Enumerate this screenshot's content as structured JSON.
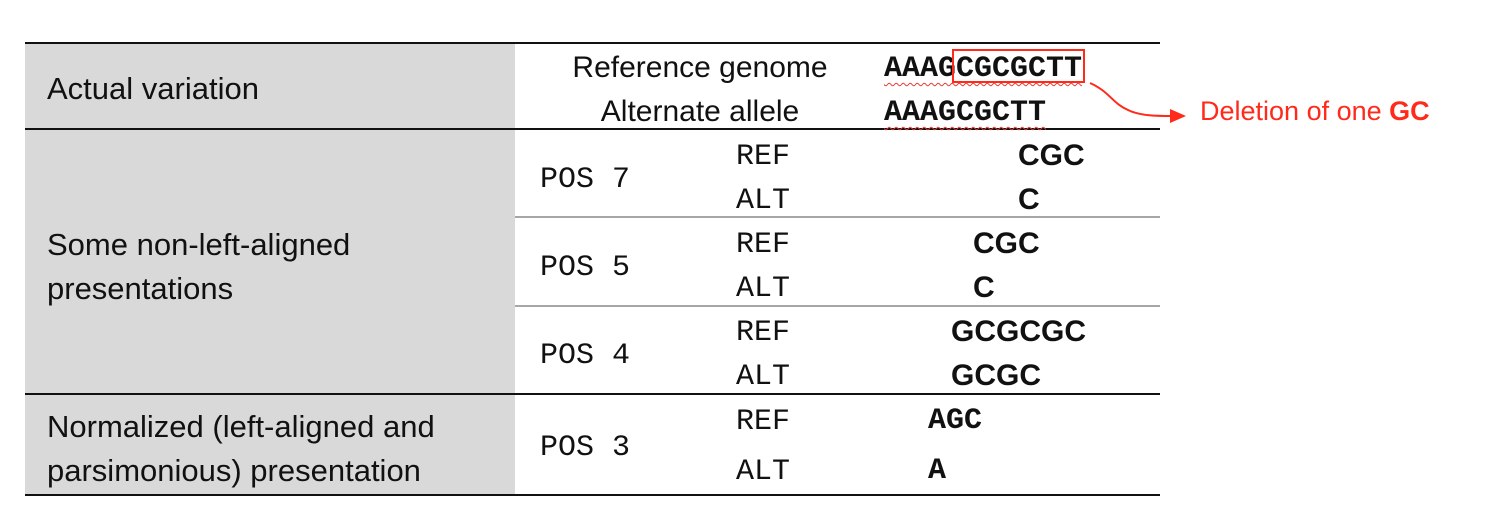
{
  "actual_variation": {
    "label": "Actual variation",
    "reference_label": "Reference genome",
    "alternate_label": "Alternate allele",
    "reference_seq": "AAAGCGCGCTT",
    "alternate_seq": "AAAGCGCTT",
    "annotation_text": "Deletion of one ",
    "annotation_bold": "GC"
  },
  "non_left_aligned": {
    "label": "Some non-left-aligned presentations",
    "rows": [
      {
        "pos": "POS 7",
        "ref_key": "REF",
        "alt_key": "ALT",
        "ref": "CGC",
        "alt": "C"
      },
      {
        "pos": "POS 5",
        "ref_key": "REF",
        "alt_key": "ALT",
        "ref": "CGC",
        "alt": "C"
      },
      {
        "pos": "POS 4",
        "ref_key": "REF",
        "alt_key": "ALT",
        "ref": "GCGCGC",
        "alt": "GCGC"
      }
    ]
  },
  "normalized": {
    "label": "Normalized (left-aligned and parsimonious) presentation",
    "row": {
      "pos": "POS 3",
      "ref_key": "REF",
      "alt_key": "ALT",
      "ref": "AGC",
      "alt": "A"
    }
  },
  "colors": {
    "annotation": "#ff2a1a",
    "shade": "#d9d9d9"
  }
}
